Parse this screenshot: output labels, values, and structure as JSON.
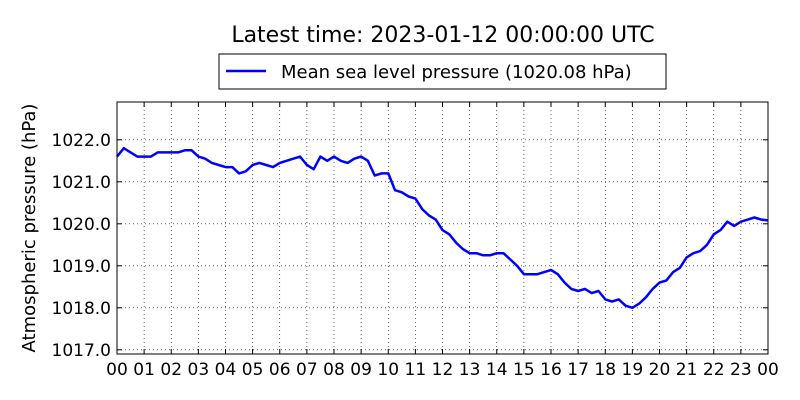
{
  "chart_data": {
    "type": "line",
    "title": "Latest time: 2023-01-12 00:00:00 UTC",
    "xlabel": "",
    "ylabel": "Atmospheric pressure (hPa)",
    "xlim": [
      0,
      24
    ],
    "ylim": [
      1016.9,
      1022.9
    ],
    "x_ticks": [
      "00",
      "01",
      "02",
      "03",
      "04",
      "05",
      "06",
      "07",
      "08",
      "09",
      "10",
      "11",
      "12",
      "13",
      "14",
      "15",
      "16",
      "17",
      "18",
      "19",
      "20",
      "21",
      "22",
      "23",
      "00"
    ],
    "y_ticks": [
      {
        "value": 1017.0,
        "label": "1017.0"
      },
      {
        "value": 1018.0,
        "label": "1018.0"
      },
      {
        "value": 1019.0,
        "label": "1019.0"
      },
      {
        "value": 1020.0,
        "label": "1020.0"
      },
      {
        "value": 1021.0,
        "label": "1021.0"
      },
      {
        "value": 1022.0,
        "label": "1022.0"
      }
    ],
    "grid": true,
    "legend_position": "top-center",
    "series": [
      {
        "name": "Mean sea level pressure (1020.08 hPa)",
        "color": "#0000ff",
        "x": [
          0.0,
          0.25,
          0.5,
          0.75,
          1.0,
          1.25,
          1.5,
          1.75,
          2.0,
          2.25,
          2.5,
          2.75,
          3.0,
          3.25,
          3.5,
          3.75,
          4.0,
          4.25,
          4.5,
          4.75,
          5.0,
          5.25,
          5.5,
          5.75,
          6.0,
          6.25,
          6.5,
          6.75,
          7.0,
          7.25,
          7.5,
          7.75,
          8.0,
          8.25,
          8.5,
          8.75,
          9.0,
          9.25,
          9.5,
          9.75,
          10.0,
          10.25,
          10.5,
          10.75,
          11.0,
          11.25,
          11.5,
          11.75,
          12.0,
          12.25,
          12.5,
          12.75,
          13.0,
          13.25,
          13.5,
          13.75,
          14.0,
          14.25,
          14.5,
          14.75,
          15.0,
          15.25,
          15.5,
          15.75,
          16.0,
          16.25,
          16.5,
          16.75,
          17.0,
          17.25,
          17.5,
          17.75,
          18.0,
          18.25,
          18.5,
          18.75,
          19.0,
          19.25,
          19.5,
          19.75,
          20.0,
          20.25,
          20.5,
          20.75,
          21.0,
          21.25,
          21.5,
          21.75,
          22.0,
          22.25,
          22.5,
          22.75,
          23.0,
          23.25,
          23.5,
          23.75,
          24.0
        ],
        "values": [
          1021.6,
          1021.8,
          1021.7,
          1021.6,
          1021.6,
          1021.6,
          1021.7,
          1021.7,
          1021.7,
          1021.7,
          1021.75,
          1021.75,
          1021.6,
          1021.55,
          1021.45,
          1021.4,
          1021.35,
          1021.35,
          1021.2,
          1021.25,
          1021.4,
          1021.45,
          1021.4,
          1021.35,
          1021.45,
          1021.5,
          1021.55,
          1021.6,
          1021.4,
          1021.3,
          1021.6,
          1021.5,
          1021.6,
          1021.5,
          1021.45,
          1021.55,
          1021.6,
          1021.5,
          1021.15,
          1021.2,
          1021.2,
          1020.8,
          1020.75,
          1020.65,
          1020.6,
          1020.35,
          1020.2,
          1020.1,
          1019.85,
          1019.75,
          1019.55,
          1019.4,
          1019.3,
          1019.3,
          1019.25,
          1019.25,
          1019.3,
          1019.3,
          1019.15,
          1019.0,
          1018.8,
          1018.8,
          1018.8,
          1018.85,
          1018.9,
          1018.8,
          1018.6,
          1018.45,
          1018.4,
          1018.45,
          1018.35,
          1018.4,
          1018.2,
          1018.15,
          1018.2,
          1018.05,
          1018.0,
          1018.1,
          1018.25,
          1018.45,
          1018.6,
          1018.65,
          1018.85,
          1018.95,
          1019.2,
          1019.3,
          1019.35,
          1019.5,
          1019.75,
          1019.85,
          1020.05,
          1019.95,
          1020.05,
          1020.1,
          1020.15,
          1020.1,
          1020.08
        ]
      }
    ]
  }
}
